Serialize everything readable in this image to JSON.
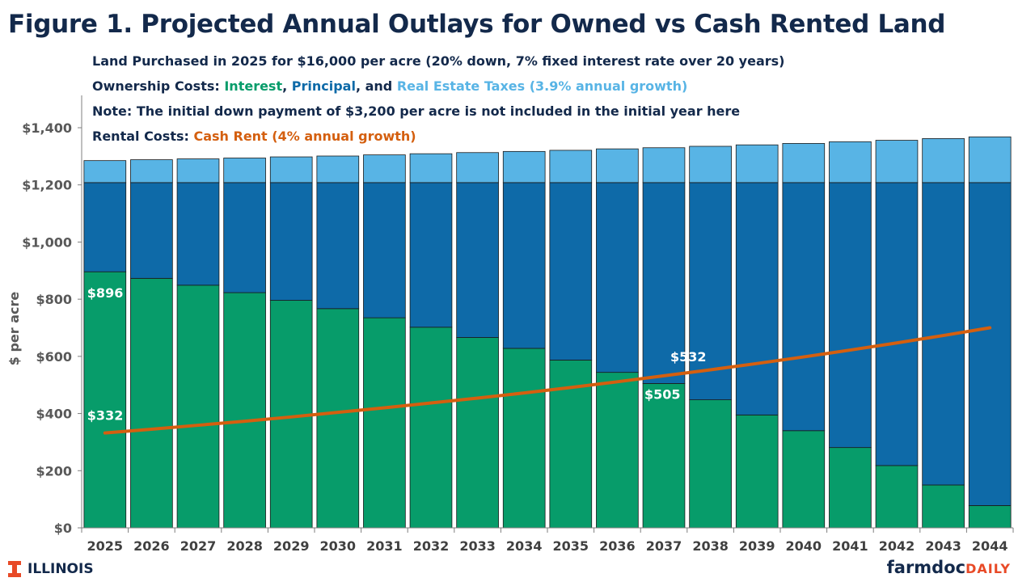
{
  "title": "Figure 1. Projected Annual Outlays for Owned vs Cash Rented Land",
  "notes": {
    "line1": "Land Purchased in 2025 for $16,000 per acre (20% down, 7% fixed interest rate over 20 years)",
    "line2_prefix": "Ownership Costs: ",
    "line2_interest": "Interest",
    "line2_sep1": ", ",
    "line2_principal": "Principal",
    "line2_sep2": ", and ",
    "line2_taxes": "Real Estate Taxes (3.9% annual growth)",
    "line3": "Note: The initial down payment of $3,200 per acre is not included in the initial year here",
    "line4_prefix": "Rental Costs: ",
    "line4_rent": "Cash Rent (4% annual growth)"
  },
  "branding": {
    "left": "ILLINOIS",
    "right_main": "farmdoc",
    "right_accent": "DAILY"
  },
  "chart_data": {
    "type": "bar",
    "stacked": true,
    "categories": [
      "2025",
      "2026",
      "2027",
      "2028",
      "2029",
      "2030",
      "2031",
      "2032",
      "2033",
      "2034",
      "2035",
      "2036",
      "2037",
      "2038",
      "2039",
      "2040",
      "2041",
      "2042",
      "2043",
      "2044"
    ],
    "series": [
      {
        "name": "Interest",
        "color": "#079c6a",
        "values": [
          896,
          873,
          849,
          823,
          796,
          767,
          735,
          702,
          666,
          628,
          587,
          544,
          505,
          448,
          395,
          340,
          281,
          218,
          150,
          78
        ]
      },
      {
        "name": "Principal",
        "color": "#0e6aa8",
        "values": [
          312,
          335,
          359,
          385,
          412,
          441,
          473,
          506,
          542,
          580,
          621,
          664,
          703,
          760,
          813,
          868,
          927,
          990,
          1058,
          1130
        ]
      },
      {
        "name": "Real Estate Taxes",
        "color": "#58b4e5",
        "values": [
          77,
          80,
          83,
          86,
          90,
          93,
          97,
          101,
          105,
          109,
          113,
          118,
          122,
          127,
          132,
          137,
          143,
          148,
          154,
          160
        ]
      },
      {
        "name": "Cash Rent",
        "type": "line",
        "color": "#d45f0f",
        "values": [
          332,
          345,
          359,
          373,
          388,
          404,
          420,
          437,
          454,
          472,
          491,
          511,
          532,
          553,
          575,
          598,
          622,
          647,
          673,
          700
        ]
      }
    ],
    "ylabel": "$ per acre",
    "ylim": [
      0,
      1400
    ],
    "yticks": [
      0,
      200,
      400,
      600,
      800,
      1000,
      1200,
      1400
    ],
    "ytick_labels": [
      "$0",
      "$200",
      "$400",
      "$600",
      "$800",
      "$1,000",
      "$1,200",
      "$1,400"
    ],
    "annotations": [
      {
        "series": "Interest",
        "category": "2025",
        "text": "$896"
      },
      {
        "series": "Cash Rent",
        "category": "2025",
        "text": "$332"
      },
      {
        "series": "Cash Rent",
        "category": "2037",
        "text": "$532"
      },
      {
        "series": "Interest",
        "category": "2037",
        "text": "$505"
      }
    ]
  }
}
